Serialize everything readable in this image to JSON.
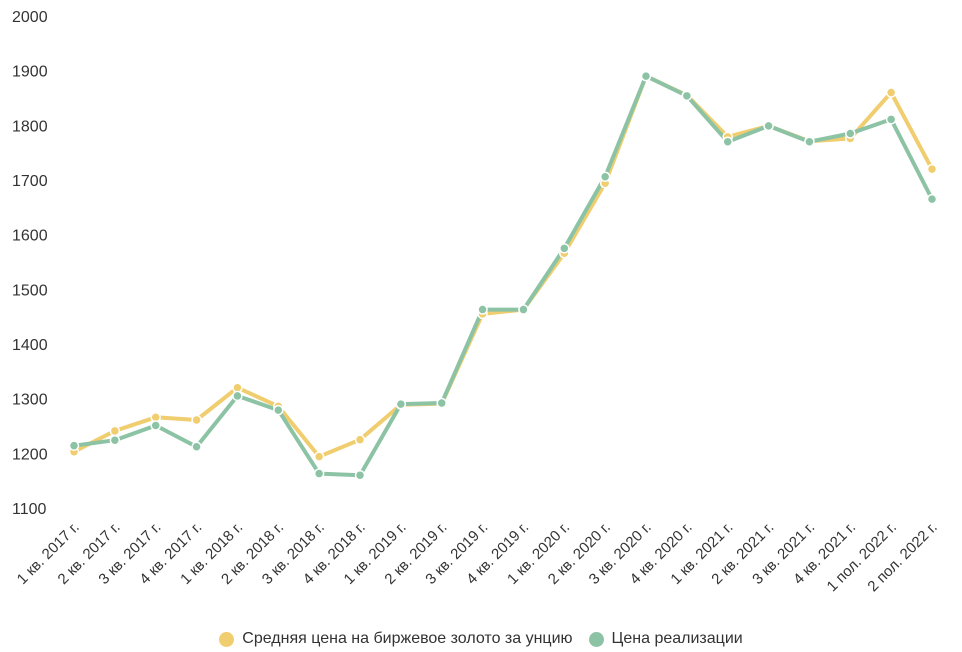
{
  "chart_data": {
    "type": "line",
    "categories": [
      "1 кв. 2017 г.",
      "2 кв. 2017 г.",
      "3 кв. 2017 г.",
      "4 кв. 2017 г.",
      "1 кв. 2018 г.",
      "2 кв. 2018 г.",
      "3 кв. 2018 г.",
      "4 кв. 2018 г.",
      "1 кв. 2019 г.",
      "2 кв. 2019 г.",
      "3 кв. 2019 г.",
      "4 кв. 2019 г.",
      "1 кв. 2020 г.",
      "2 кв. 2020 г.",
      "3 кв. 2020 г.",
      "4 кв. 2020 г.",
      "1 кв. 2021 г.",
      "2 кв. 2021 г.",
      "3 кв. 2021 г.",
      "4 кв. 2021 г.",
      "1 пол. 2022 г.",
      "2 пол. 2022 г."
    ],
    "series": [
      {
        "name": "Средняя цена на биржевое золото за унцию",
        "color": "#F0CD6E",
        "values": [
          1203,
          1241,
          1266,
          1261,
          1320,
          1286,
          1194,
          1225,
          1289,
          1291,
          1455,
          1463,
          1566,
          1694,
          1890,
          1855,
          1779,
          1799,
          1771,
          1776,
          1860,
          1720
        ]
      },
      {
        "name": "Цена реализации",
        "color": "#8CC3A5",
        "values": [
          1214,
          1224,
          1251,
          1212,
          1305,
          1279,
          1163,
          1160,
          1290,
          1292,
          1463,
          1463,
          1575,
          1706,
          1890,
          1854,
          1770,
          1799,
          1770,
          1785,
          1811,
          1665
        ]
      }
    ],
    "yticks": [
      1100,
      1200,
      1300,
      1400,
      1500,
      1600,
      1700,
      1800,
      1900,
      2000
    ],
    "ylim": [
      1100,
      2000
    ],
    "title": "",
    "xlabel": "",
    "ylabel": "",
    "grid": false,
    "legend_position": "bottom"
  }
}
